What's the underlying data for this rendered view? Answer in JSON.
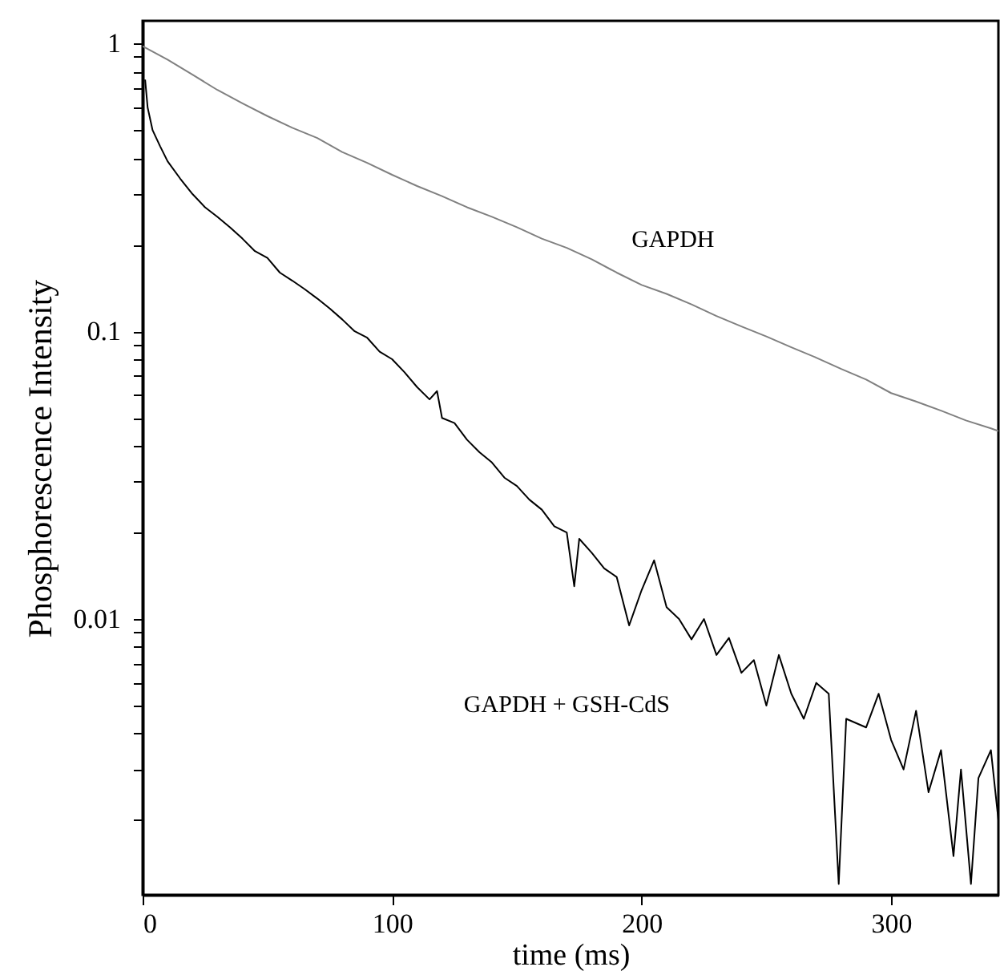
{
  "chart_data": {
    "type": "line",
    "xlabel": "time (ms)",
    "ylabel": "Phosphorescence Intensity",
    "log": "y",
    "xlim": [
      0,
      343
    ],
    "xticks": [
      0,
      100,
      200,
      300
    ],
    "ylim": [
      0.0011,
      1.2
    ],
    "yticks": [
      {
        "value": 0.002,
        "label": null
      },
      {
        "value": 0.003,
        "label": null
      },
      {
        "value": 0.004,
        "label": null
      },
      {
        "value": 0.005,
        "label": null
      },
      {
        "value": 0.006,
        "label": null
      },
      {
        "value": 0.007,
        "label": null
      },
      {
        "value": 0.008,
        "label": null
      },
      {
        "value": 0.009,
        "label": null
      },
      0.01,
      {
        "value": 0.02,
        "label": null
      },
      {
        "value": 0.03,
        "label": null
      },
      {
        "value": 0.04,
        "label": null
      },
      {
        "value": 0.05,
        "label": null
      },
      {
        "value": 0.06,
        "label": null
      },
      {
        "value": 0.07,
        "label": null
      },
      {
        "value": 0.08,
        "label": null
      },
      {
        "value": 0.09,
        "label": null
      },
      0.1,
      {
        "value": 0.2,
        "label": null
      },
      {
        "value": 0.3,
        "label": null
      },
      {
        "value": 0.4,
        "label": null
      },
      {
        "value": 0.5,
        "label": null
      },
      {
        "value": 0.6,
        "label": null
      },
      {
        "value": 0.7,
        "label": null
      },
      {
        "value": 0.8,
        "label": null
      },
      {
        "value": 0.9,
        "label": null
      },
      1
    ],
    "legend": false,
    "series": [
      {
        "name": "GAPDH",
        "color": "#808080",
        "x": [
          0,
          10,
          20,
          30,
          40,
          50,
          60,
          70,
          80,
          90,
          100,
          110,
          120,
          130,
          140,
          150,
          160,
          170,
          180,
          190,
          200,
          210,
          220,
          230,
          240,
          250,
          260,
          270,
          280,
          290,
          300,
          310,
          320,
          330,
          340,
          343
        ],
        "values": [
          0.98,
          0.88,
          0.78,
          0.69,
          0.62,
          0.56,
          0.51,
          0.47,
          0.42,
          0.385,
          0.35,
          0.32,
          0.295,
          0.27,
          0.25,
          0.23,
          0.21,
          0.195,
          0.178,
          0.16,
          0.145,
          0.135,
          0.124,
          0.113,
          0.104,
          0.096,
          0.088,
          0.081,
          0.074,
          0.068,
          0.061,
          0.057,
          0.053,
          0.049,
          0.046,
          0.045
        ]
      },
      {
        "name": "GAPDH + GSH-CdS",
        "color": "#000000",
        "x": [
          1,
          2,
          4,
          7,
          10,
          15,
          20,
          25,
          30,
          35,
          40,
          45,
          50,
          55,
          60,
          65,
          70,
          75,
          80,
          85,
          90,
          95,
          100,
          105,
          110,
          115,
          118,
          120,
          125,
          130,
          135,
          140,
          145,
          150,
          155,
          160,
          165,
          170,
          173,
          175,
          180,
          185,
          190,
          195,
          200,
          205,
          210,
          215,
          220,
          225,
          230,
          235,
          240,
          245,
          250,
          255,
          260,
          265,
          270,
          275,
          279,
          282,
          290,
          295,
          300,
          305,
          310,
          315,
          320,
          325,
          328,
          332,
          335,
          340,
          343
        ],
        "values": [
          0.75,
          0.6,
          0.5,
          0.44,
          0.39,
          0.34,
          0.3,
          0.27,
          0.25,
          0.23,
          0.21,
          0.19,
          0.18,
          0.16,
          0.15,
          0.14,
          0.13,
          0.12,
          0.11,
          0.1,
          0.095,
          0.085,
          0.08,
          0.072,
          0.064,
          0.058,
          0.062,
          0.05,
          0.048,
          0.042,
          0.038,
          0.035,
          0.031,
          0.029,
          0.026,
          0.024,
          0.021,
          0.02,
          0.013,
          0.019,
          0.017,
          0.015,
          0.014,
          0.0095,
          0.0126,
          0.016,
          0.011,
          0.01,
          0.0085,
          0.01,
          0.0075,
          0.0086,
          0.0065,
          0.0072,
          0.005,
          0.0075,
          0.0055,
          0.0045,
          0.006,
          0.0055,
          0.0012,
          0.0045,
          0.0042,
          0.0055,
          0.0038,
          0.003,
          0.0048,
          0.0025,
          0.0035,
          0.0015,
          0.003,
          0.0012,
          0.0028,
          0.0035,
          0.002
        ]
      }
    ]
  }
}
